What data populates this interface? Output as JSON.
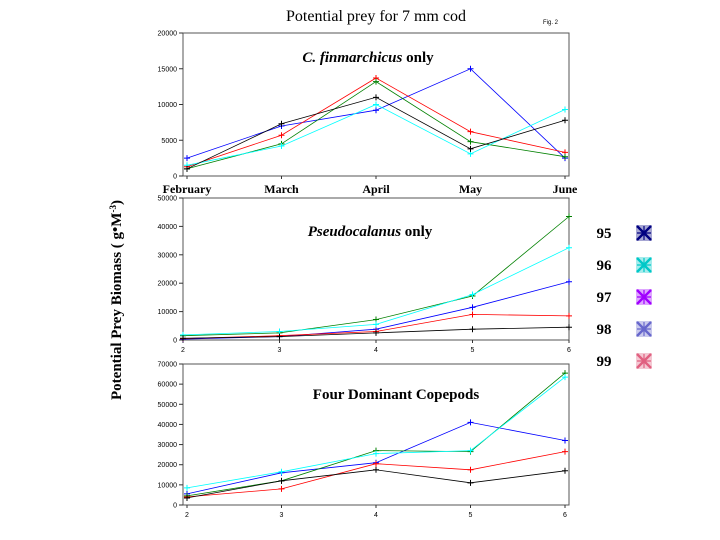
{
  "figure": {
    "title": "Potential prey for 7 mm cod",
    "fig_label": "Fig. 2",
    "ylabel_main": "Potential Prey Biomass ( g",
    "ylabel_unit": "M",
    "ylabel_exp": "-3",
    "ylabel_close": ")"
  },
  "legend": [
    {
      "label": "95",
      "color": "#000080"
    },
    {
      "label": "96",
      "color": "#00c8c8"
    },
    {
      "label": "97",
      "color": "#a000ff"
    },
    {
      "label": "98",
      "color": "#6666cc"
    },
    {
      "label": "99",
      "color": "#e06080"
    }
  ],
  "chart_data": [
    {
      "type": "line",
      "title_italic": "C. finmarchicus",
      "title_rest": " only",
      "x": [
        1,
        2,
        3,
        4,
        5
      ],
      "x_tick_labels": [
        "February",
        "March",
        "April",
        "May",
        "June"
      ],
      "ylim": [
        0,
        20000
      ],
      "y_ticks": [
        0,
        5000,
        10000,
        15000,
        20000
      ],
      "series": [
        {
          "color": "#0000ff",
          "values": [
            2500,
            7000,
            9200,
            15000,
            2500
          ]
        },
        {
          "color": "#ff0000",
          "values": [
            1300,
            5700,
            13700,
            6200,
            3300
          ]
        },
        {
          "color": "#008000",
          "values": [
            1000,
            4500,
            13200,
            4800,
            2700
          ]
        },
        {
          "color": "#00ffff",
          "values": [
            1500,
            4200,
            10000,
            3100,
            9300
          ]
        },
        {
          "color": "#000000",
          "values": [
            1000,
            7300,
            11000,
            3800,
            7800
          ]
        }
      ]
    },
    {
      "type": "line",
      "title_italic": "Pseudocalanus",
      "title_rest": " only",
      "x": [
        2,
        3,
        4,
        5,
        6
      ],
      "x_tick_labels": [
        "2",
        "3",
        "4",
        "5",
        "6"
      ],
      "ylim": [
        0,
        50000
      ],
      "y_ticks": [
        0,
        10000,
        20000,
        30000,
        40000,
        50000
      ],
      "series": [
        {
          "color": "#0000ff",
          "values": [
            300,
            1200,
            3800,
            11500,
            20500
          ]
        },
        {
          "color": "#ff0000",
          "values": [
            500,
            1500,
            3000,
            9000,
            8500
          ]
        },
        {
          "color": "#008000",
          "values": [
            1500,
            2500,
            7200,
            15500,
            43500
          ]
        },
        {
          "color": "#00ffff",
          "values": [
            1800,
            3000,
            5500,
            16000,
            32500
          ]
        },
        {
          "color": "#000000",
          "values": [
            600,
            1200,
            2500,
            3800,
            4500
          ]
        }
      ]
    },
    {
      "type": "line",
      "title_italic": "",
      "title_rest": "Four Dominant Copepods",
      "x": [
        2,
        3,
        4,
        5,
        6
      ],
      "x_tick_labels": [
        "2",
        "3",
        "4",
        "5",
        "6"
      ],
      "ylim": [
        0,
        70000
      ],
      "y_ticks": [
        0,
        10000,
        20000,
        30000,
        40000,
        50000,
        60000,
        70000
      ],
      "series": [
        {
          "color": "#0000ff",
          "values": [
            5500,
            16000,
            21000,
            41000,
            32000
          ]
        },
        {
          "color": "#ff0000",
          "values": [
            4000,
            8000,
            20500,
            17500,
            26500
          ]
        },
        {
          "color": "#008000",
          "values": [
            4500,
            12000,
            27000,
            26500,
            65500
          ]
        },
        {
          "color": "#00ffff",
          "values": [
            8500,
            16500,
            25500,
            27000,
            63500
          ]
        },
        {
          "color": "#000000",
          "values": [
            3500,
            12000,
            17500,
            11000,
            17000
          ]
        }
      ]
    }
  ]
}
